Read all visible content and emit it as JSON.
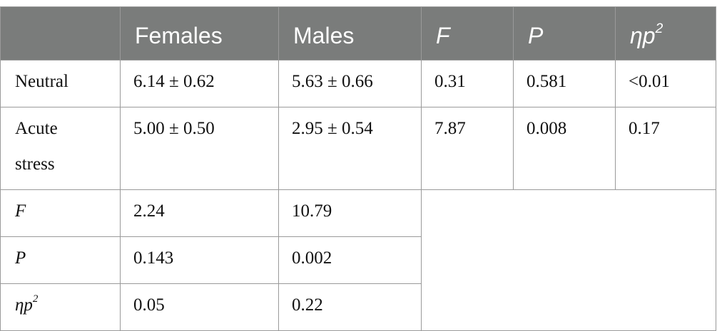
{
  "table": {
    "header": {
      "blank": "",
      "females": "Females",
      "males": "Males",
      "f": "F",
      "p": "P",
      "eta_base": "ηp",
      "eta_sup": "2"
    },
    "rows": [
      {
        "label": "Neutral",
        "females": "6.14 ± 0.62",
        "males": "5.63 ± 0.66",
        "f": "0.31",
        "p": "0.581",
        "eta": "<0.01"
      },
      {
        "label_line1": "Acute",
        "label_line2": "stress",
        "females": "5.00 ± 0.50",
        "males": "2.95 ± 0.54",
        "f": "7.87",
        "p": "0.008",
        "eta": "0.17"
      },
      {
        "label": "F",
        "females": "2.24",
        "males": "10.79"
      },
      {
        "label": "P",
        "females": "0.143",
        "males": "0.002"
      },
      {
        "label_base": "ηp",
        "label_sup": "2",
        "females": "0.05",
        "males": "0.22"
      }
    ]
  }
}
